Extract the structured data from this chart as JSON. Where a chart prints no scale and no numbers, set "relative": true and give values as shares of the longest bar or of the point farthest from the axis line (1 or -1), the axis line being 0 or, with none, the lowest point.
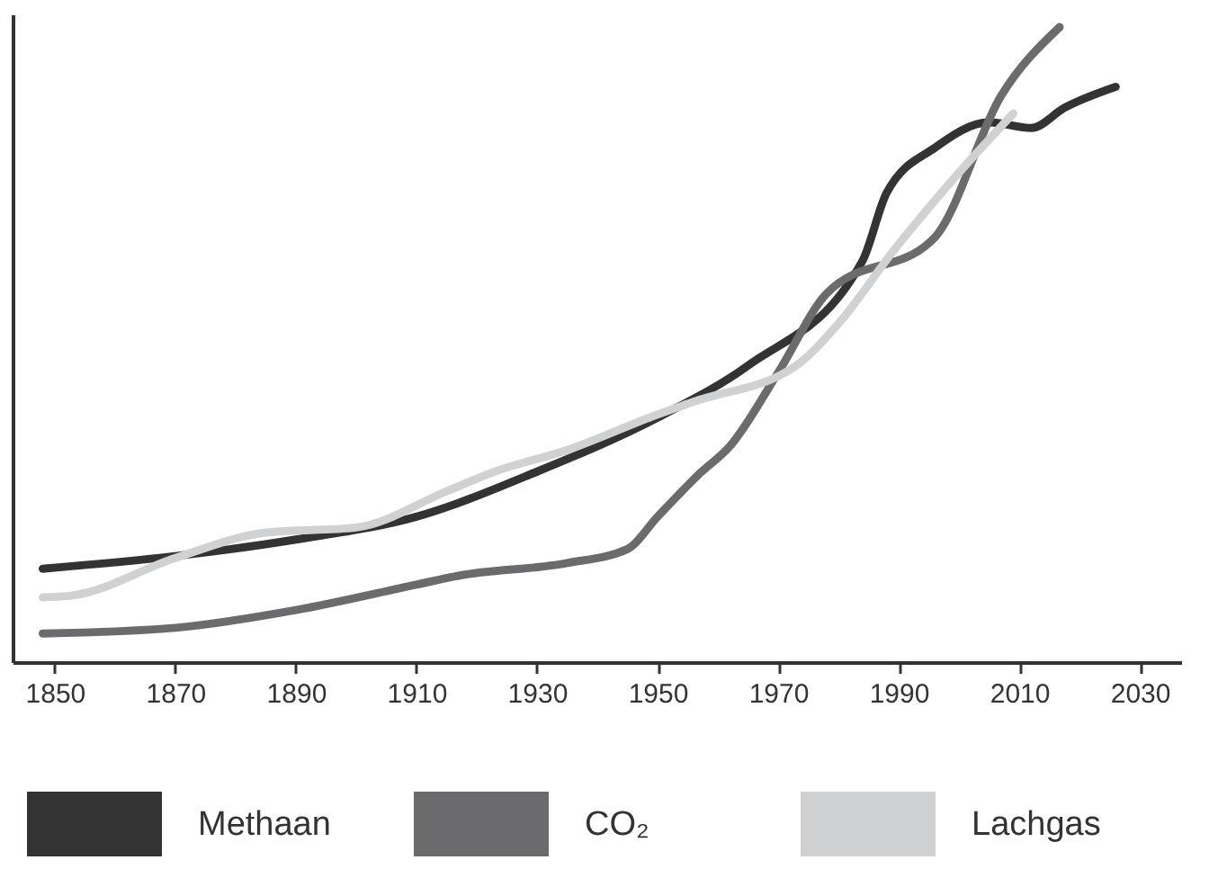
{
  "chart_data": {
    "type": "line",
    "relative": true,
    "xlim": [
      1843,
      2037
    ],
    "xticks": [
      1850,
      1870,
      1890,
      1910,
      1930,
      1950,
      1970,
      1990,
      2010,
      2030
    ],
    "grid": false,
    "legend": "bottom",
    "line_style": "solid",
    "marker": "none",
    "series": [
      {
        "name": "Methaan",
        "color": "#333333",
        "x": [
          1848,
          1870,
          1890,
          1910,
          1930,
          1950,
          1965,
          1984,
          1988,
          1996,
          2005,
          2012,
          2017.5,
          2026
        ],
        "values": [
          0.147,
          0.167,
          0.193,
          0.229,
          0.3,
          0.385,
          0.467,
          0.632,
          0.739,
          0.81,
          0.85,
          0.841,
          0.873,
          0.906
        ]
      },
      {
        "name": "CO₂",
        "color": "#6b6b6e",
        "x": [
          1848,
          1870,
          1890,
          1910,
          1917,
          1935,
          1945,
          1950,
          1957,
          1962,
          1970,
          1978,
          1996,
          2007,
          2016.7
        ],
        "values": [
          0.045,
          0.054,
          0.082,
          0.122,
          0.136,
          0.156,
          0.178,
          0.229,
          0.297,
          0.34,
          0.456,
          0.58,
          0.669,
          0.892,
          1.0
        ]
      },
      {
        "name": "Lachgas",
        "color": "#d0d1d3",
        "x": [
          1848,
          1853,
          1870,
          1885,
          1900,
          1915,
          1923,
          1935,
          1950,
          1956,
          1973,
          1980,
          1989,
          1999,
          2009
        ],
        "values": [
          0.102,
          0.105,
          0.164,
          0.204,
          0.212,
          0.269,
          0.3,
          0.334,
          0.39,
          0.41,
          0.467,
          0.533,
          0.646,
          0.76,
          0.864
        ]
      }
    ]
  }
}
